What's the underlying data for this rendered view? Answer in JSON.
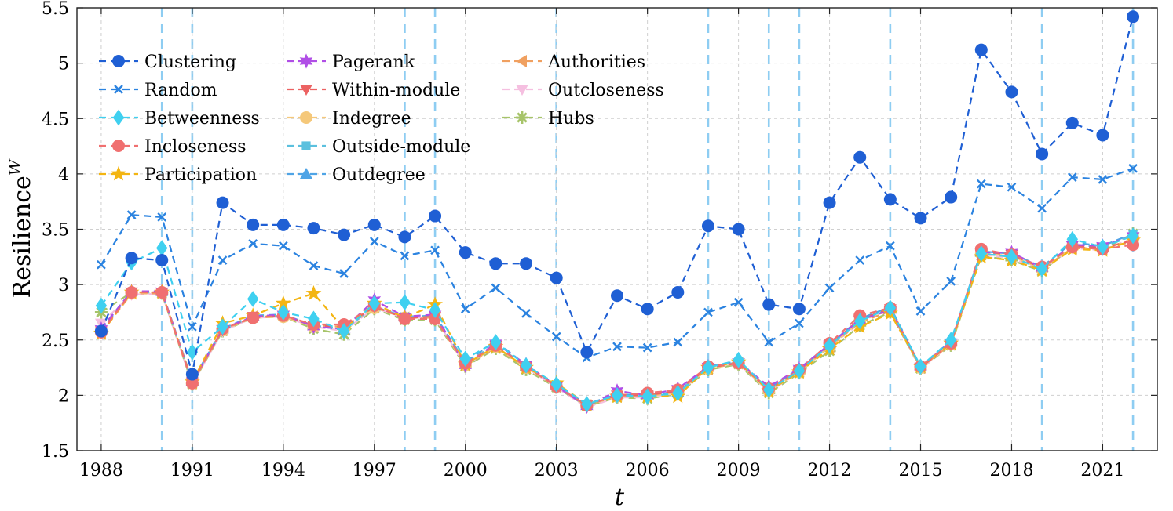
{
  "chart_data": {
    "type": "line",
    "ylabel": "Resilience",
    "ylabel_superscript": "W",
    "xlabel": "t",
    "xlim": [
      1987.2,
      2022.8
    ],
    "ylim": [
      1.5,
      5.5
    ],
    "xticks": [
      1988,
      1991,
      1994,
      1997,
      2000,
      2003,
      2006,
      2009,
      2012,
      2015,
      2018,
      2021
    ],
    "xtick_labels": [
      "1988",
      "1991",
      "1994",
      "1997",
      "2000",
      "2003",
      "2006",
      "2009",
      "2012",
      "2015",
      "2018",
      "2021"
    ],
    "yticks": [
      1.5,
      2,
      2.5,
      3,
      3.5,
      4,
      4.5,
      5,
      5.5
    ],
    "ytick_labels": [
      "1.5",
      "2",
      "2.5",
      "3",
      "3.5",
      "4",
      "4.5",
      "5",
      "5.5"
    ],
    "highlight_years": [
      1990,
      1991,
      1998,
      1999,
      2003,
      2008,
      2010,
      2011,
      2014,
      2019,
      2022
    ],
    "x": [
      1988,
      1989,
      1990,
      1991,
      1992,
      1993,
      1994,
      1995,
      1996,
      1997,
      1998,
      1999,
      2000,
      2001,
      2002,
      2003,
      2004,
      2005,
      2006,
      2007,
      2008,
      2009,
      2010,
      2011,
      2012,
      2013,
      2014,
      2015,
      2016,
      2017,
      2018,
      2019,
      2020,
      2021,
      2022
    ],
    "series": [
      {
        "name": "Clustering",
        "color": "#1f5fd4",
        "marker": "circle",
        "values": [
          2.58,
          3.24,
          3.22,
          2.19,
          3.74,
          3.54,
          3.54,
          3.51,
          3.45,
          3.54,
          3.43,
          3.62,
          3.29,
          3.19,
          3.19,
          3.06,
          2.39,
          2.9,
          2.78,
          2.93,
          3.53,
          3.5,
          2.82,
          2.78,
          3.74,
          4.15,
          3.77,
          3.6,
          3.79,
          5.12,
          4.74,
          4.18,
          4.46,
          4.35,
          5.42
        ]
      },
      {
        "name": "Random",
        "color": "#2b83e0",
        "marker": "x",
        "values": [
          3.18,
          3.63,
          3.61,
          2.62,
          3.22,
          3.37,
          3.35,
          3.17,
          3.1,
          3.39,
          3.26,
          3.31,
          2.78,
          2.97,
          2.74,
          2.53,
          2.34,
          2.44,
          2.43,
          2.48,
          2.75,
          2.84,
          2.48,
          2.65,
          2.97,
          3.22,
          3.35,
          2.76,
          3.03,
          3.91,
          3.88,
          3.69,
          3.97,
          3.95,
          4.05
        ]
      },
      {
        "name": "Betweenness",
        "color": "#3fd0f0",
        "marker": "diamond",
        "values": [
          2.81,
          3.2,
          3.33,
          2.39,
          2.62,
          2.87,
          2.75,
          2.69,
          2.58,
          2.83,
          2.84,
          2.77,
          2.33,
          2.48,
          2.27,
          2.1,
          1.92,
          2.0,
          1.99,
          2.02,
          2.25,
          2.32,
          2.05,
          2.22,
          2.45,
          2.67,
          2.79,
          2.26,
          2.5,
          3.28,
          3.25,
          3.14,
          3.41,
          3.34,
          3.44
        ]
      },
      {
        "name": "Incloseness",
        "color": "#f07070",
        "marker": "circle",
        "values": [
          2.57,
          2.93,
          2.93,
          2.11,
          2.6,
          2.7,
          2.72,
          2.64,
          2.64,
          2.81,
          2.69,
          2.69,
          2.29,
          2.45,
          2.26,
          2.08,
          1.91,
          2.0,
          2.02,
          2.05,
          2.26,
          2.29,
          2.06,
          2.23,
          2.47,
          2.72,
          2.79,
          2.26,
          2.47,
          3.32,
          3.27,
          3.16,
          3.34,
          3.32,
          3.36
        ]
      },
      {
        "name": "Participation",
        "color": "#f3b512",
        "marker": "star",
        "values": [
          2.56,
          2.93,
          2.93,
          2.12,
          2.65,
          2.72,
          2.83,
          2.92,
          2.6,
          2.83,
          2.7,
          2.82,
          2.28,
          2.44,
          2.25,
          2.11,
          1.92,
          1.99,
          1.99,
          1.99,
          2.25,
          2.3,
          2.04,
          2.21,
          2.42,
          2.62,
          2.74,
          2.26,
          2.47,
          3.25,
          3.22,
          3.13,
          3.32,
          3.31,
          3.4
        ]
      },
      {
        "name": "Pagerank",
        "color": "#b04ee6",
        "marker": "hexstar",
        "values": [
          2.6,
          2.94,
          2.94,
          2.12,
          2.6,
          2.71,
          2.73,
          2.62,
          2.6,
          2.86,
          2.71,
          2.73,
          2.27,
          2.47,
          2.28,
          2.08,
          1.9,
          2.04,
          2.0,
          2.06,
          2.26,
          2.3,
          2.08,
          2.24,
          2.46,
          2.68,
          2.77,
          2.26,
          2.48,
          3.29,
          3.29,
          3.15,
          3.36,
          3.35,
          3.44
        ]
      },
      {
        "name": "Within-module",
        "color": "#ec6262",
        "marker": "triangle-down",
        "values": [
          2.58,
          2.93,
          2.93,
          2.12,
          2.59,
          2.71,
          2.72,
          2.63,
          2.62,
          2.8,
          2.7,
          2.71,
          2.28,
          2.45,
          2.26,
          2.08,
          1.91,
          2.0,
          2.0,
          2.04,
          2.25,
          2.29,
          2.05,
          2.22,
          2.45,
          2.69,
          2.78,
          2.25,
          2.47,
          3.3,
          3.27,
          3.15,
          3.35,
          3.33,
          3.4
        ]
      },
      {
        "name": "Indegree",
        "color": "#f5c87a",
        "marker": "circle",
        "values": [
          2.57,
          2.92,
          2.93,
          2.11,
          2.59,
          2.7,
          2.71,
          2.62,
          2.61,
          2.79,
          2.7,
          2.7,
          2.27,
          2.44,
          2.25,
          2.08,
          1.91,
          1.99,
          1.99,
          2.03,
          2.24,
          2.29,
          2.04,
          2.21,
          2.44,
          2.67,
          2.77,
          2.25,
          2.46,
          3.28,
          3.26,
          3.14,
          3.34,
          3.32,
          3.41
        ]
      },
      {
        "name": "Outside-module",
        "color": "#5bc0de",
        "marker": "square",
        "values": [
          2.59,
          2.93,
          2.93,
          2.12,
          2.59,
          2.71,
          2.72,
          2.63,
          2.6,
          2.8,
          2.71,
          2.71,
          2.29,
          2.46,
          2.26,
          2.08,
          1.91,
          2.0,
          2.0,
          2.03,
          2.25,
          2.3,
          2.05,
          2.22,
          2.45,
          2.68,
          2.78,
          2.25,
          2.47,
          3.29,
          3.27,
          3.15,
          3.36,
          3.34,
          3.45
        ]
      },
      {
        "name": "Outdegree",
        "color": "#4fa4e6",
        "marker": "triangle-up",
        "values": [
          2.6,
          2.94,
          2.94,
          2.13,
          2.6,
          2.72,
          2.73,
          2.63,
          2.59,
          2.8,
          2.71,
          2.72,
          2.3,
          2.49,
          2.27,
          2.09,
          1.92,
          2.01,
          2.0,
          2.03,
          2.26,
          2.31,
          2.06,
          2.24,
          2.46,
          2.69,
          2.8,
          2.26,
          2.49,
          3.3,
          3.28,
          3.16,
          3.38,
          3.35,
          3.46
        ]
      },
      {
        "name": "Authorities",
        "color": "#f0a060",
        "marker": "triangle-left",
        "values": [
          2.56,
          2.92,
          2.92,
          2.11,
          2.59,
          2.71,
          2.72,
          2.63,
          2.62,
          2.8,
          2.7,
          2.7,
          2.27,
          2.43,
          2.25,
          2.08,
          1.91,
          1.99,
          1.99,
          2.04,
          2.24,
          2.29,
          2.05,
          2.21,
          2.44,
          2.66,
          2.76,
          2.25,
          2.46,
          3.28,
          3.25,
          3.14,
          3.33,
          3.32,
          3.39
        ]
      },
      {
        "name": "Outcloseness",
        "color": "#f5bfe0",
        "marker": "triangle-down",
        "values": [
          2.65,
          2.91,
          2.92,
          2.1,
          2.58,
          2.7,
          2.71,
          2.62,
          2.58,
          2.79,
          2.7,
          2.7,
          2.27,
          2.44,
          2.25,
          2.07,
          1.89,
          1.98,
          1.98,
          2.02,
          2.24,
          2.29,
          2.03,
          2.21,
          2.44,
          2.65,
          2.77,
          2.24,
          2.46,
          3.27,
          3.24,
          3.13,
          3.33,
          3.31,
          3.42
        ]
      },
      {
        "name": "Hubs",
        "color": "#a7c46a",
        "marker": "asterisk",
        "values": [
          2.75,
          2.93,
          2.92,
          2.1,
          2.58,
          2.7,
          2.71,
          2.6,
          2.55,
          2.78,
          2.68,
          2.68,
          2.26,
          2.42,
          2.23,
          2.07,
          1.9,
          1.98,
          1.97,
          2.01,
          2.23,
          2.28,
          2.02,
          2.2,
          2.4,
          2.63,
          2.75,
          2.24,
          2.45,
          3.26,
          3.22,
          3.12,
          3.34,
          3.32,
          3.46
        ]
      }
    ]
  }
}
